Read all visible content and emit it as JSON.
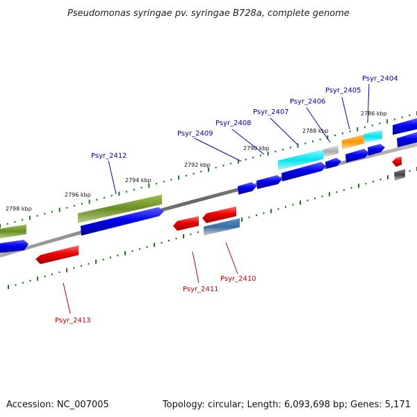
{
  "title": "Pseudomonas syringae pv. syringae B728a, complete genome",
  "footer": {
    "accession": "Accession: NC_007005",
    "summary": "Topology: circular; Length: 6,093,698 bp; Genes: 5,171"
  },
  "scale_labels": [
    "2798 kbp",
    "2796 kbp",
    "2794 kbp",
    "2792 kbp",
    "2790 kbp",
    "2788 kbp",
    "2786 kbp"
  ],
  "gene_labels": {
    "forward": [
      "Psyr_2404",
      "Psyr_2405",
      "Psyr_2406",
      "Psyr_2407",
      "Psyr_2408",
      "Psyr_2409",
      "Psyr_2412"
    ],
    "reverse": [
      "Psyr_2410",
      "Psyr_2411",
      "Psyr_2413"
    ]
  },
  "colors": {
    "forward_cds": "#0000e6",
    "reverse_cds": "#e60000",
    "label_forward": "#0000cc",
    "label_reverse": "#cc0000",
    "olive_feature": "#6b8e23",
    "cyan_feature": "#00e5ee",
    "orange_feature": "#ff9900",
    "tick": "#1a7a1a",
    "backbone": "#777777"
  }
}
